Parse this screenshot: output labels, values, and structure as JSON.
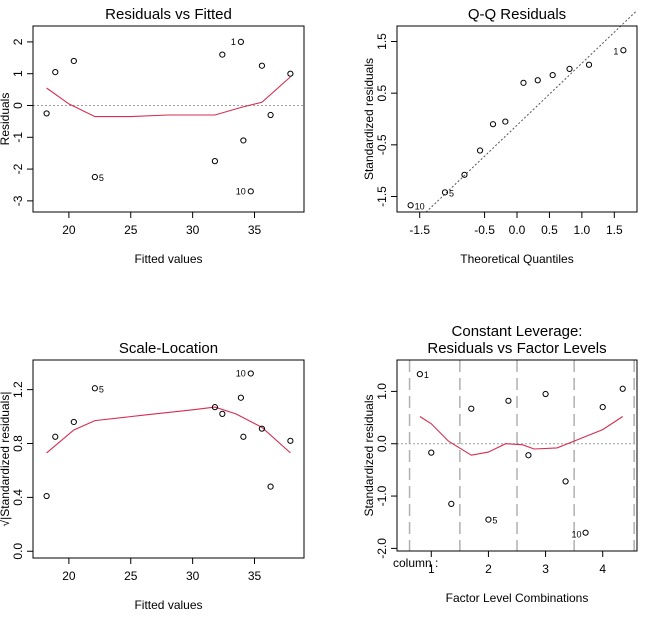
{
  "chart_data": [
    {
      "type": "scatter",
      "id": "p1",
      "title": "Residuals vs Fitted",
      "xlabel": "Fitted values",
      "ylabel": "Residuals",
      "xlim": [
        17.1,
        39.0
      ],
      "ylim": [
        -3.35,
        2.5
      ],
      "xticks": [
        20,
        25,
        30,
        35
      ],
      "yticks": [
        -3,
        -2,
        -1,
        0,
        1,
        2
      ],
      "ref_line": 0,
      "points": [
        {
          "x": 18.2,
          "y": -0.25
        },
        {
          "x": 18.9,
          "y": 1.05
        },
        {
          "x": 20.4,
          "y": 1.4
        },
        {
          "x": 22.1,
          "y": -2.25,
          "label": "5"
        },
        {
          "x": 31.8,
          "y": -1.75
        },
        {
          "x": 32.4,
          "y": 1.6
        },
        {
          "x": 33.9,
          "y": 2.0,
          "label": "1"
        },
        {
          "x": 34.1,
          "y": -1.1
        },
        {
          "x": 34.7,
          "y": -2.7,
          "label": "10"
        },
        {
          "x": 35.6,
          "y": 1.25
        },
        {
          "x": 36.3,
          "y": -0.3
        },
        {
          "x": 37.9,
          "y": 1.0
        }
      ],
      "smooth": [
        {
          "x": 18.2,
          "y": 0.55
        },
        {
          "x": 20.0,
          "y": 0.05
        },
        {
          "x": 22.1,
          "y": -0.35
        },
        {
          "x": 25.0,
          "y": -0.35
        },
        {
          "x": 28.0,
          "y": -0.3
        },
        {
          "x": 31.8,
          "y": -0.3
        },
        {
          "x": 34.0,
          "y": -0.05
        },
        {
          "x": 35.6,
          "y": 0.1
        },
        {
          "x": 37.9,
          "y": 0.9
        }
      ]
    },
    {
      "type": "scatter",
      "id": "p2",
      "title": "Q-Q Residuals",
      "xlabel": "Theoretical Quantiles",
      "ylabel": "Standardized residuals",
      "xlim": [
        -1.85,
        1.85
      ],
      "ylim": [
        -1.8,
        1.8
      ],
      "xticks": [
        -1.5,
        -0.5,
        0.0,
        0.5,
        1.0,
        1.5
      ],
      "yticks": [
        -1.5,
        -0.5,
        0.5,
        1.5
      ],
      "qq_line": {
        "slope": 1.2,
        "intercept": -0.12
      },
      "points": [
        {
          "x": -1.64,
          "y": -1.67,
          "label": "10"
        },
        {
          "x": -1.11,
          "y": -1.42,
          "label": "5"
        },
        {
          "x": -0.81,
          "y": -1.08
        },
        {
          "x": -0.57,
          "y": -0.61
        },
        {
          "x": -0.37,
          "y": -0.1
        },
        {
          "x": -0.18,
          "y": -0.05
        },
        {
          "x": 0.1,
          "y": 0.7
        },
        {
          "x": 0.32,
          "y": 0.75
        },
        {
          "x": 0.55,
          "y": 0.85
        },
        {
          "x": 0.81,
          "y": 0.97
        },
        {
          "x": 1.11,
          "y": 1.05
        },
        {
          "x": 1.64,
          "y": 1.33,
          "label": "1"
        }
      ]
    },
    {
      "type": "scatter",
      "id": "p3",
      "title": "Scale-Location",
      "xlabel": "Fitted values",
      "ylabel": "√|Standardized residuals|",
      "xlim": [
        17.1,
        39.0
      ],
      "ylim": [
        -0.05,
        1.42
      ],
      "xticks": [
        20,
        25,
        30,
        35
      ],
      "yticks": [
        0.0,
        0.4,
        0.8,
        1.2
      ],
      "points": [
        {
          "x": 18.2,
          "y": 0.41
        },
        {
          "x": 18.9,
          "y": 0.85
        },
        {
          "x": 20.4,
          "y": 0.96
        },
        {
          "x": 22.1,
          "y": 1.21,
          "label": "5"
        },
        {
          "x": 31.8,
          "y": 1.07
        },
        {
          "x": 32.4,
          "y": 1.02
        },
        {
          "x": 33.9,
          "y": 1.14
        },
        {
          "x": 34.1,
          "y": 0.85
        },
        {
          "x": 34.7,
          "y": 1.32,
          "label": "10"
        },
        {
          "x": 35.6,
          "y": 0.91
        },
        {
          "x": 36.3,
          "y": 0.48
        },
        {
          "x": 37.9,
          "y": 0.82
        }
      ],
      "smooth": [
        {
          "x": 18.2,
          "y": 0.73
        },
        {
          "x": 20.4,
          "y": 0.9
        },
        {
          "x": 22.1,
          "y": 0.97
        },
        {
          "x": 26.0,
          "y": 1.01
        },
        {
          "x": 30.0,
          "y": 1.05
        },
        {
          "x": 31.8,
          "y": 1.07
        },
        {
          "x": 33.5,
          "y": 1.02
        },
        {
          "x": 35.6,
          "y": 0.92
        },
        {
          "x": 37.9,
          "y": 0.73
        }
      ]
    },
    {
      "type": "scatter",
      "id": "p4",
      "title": "Constant Leverage:",
      "title2": "Residuals vs Factor Levels",
      "xlabel": "Factor Level Combinations",
      "ylabel": "Standardized residuals",
      "factor_label": "column :",
      "xlim": [
        0.4,
        4.6
      ],
      "ylim": [
        -2.05,
        1.6
      ],
      "xticks": [
        1,
        2,
        3,
        4
      ],
      "yticks": [
        -2.0,
        -1.0,
        0.0,
        1.0
      ],
      "ref_line": 0,
      "separators": [
        0.62,
        1.5,
        2.5,
        3.5,
        4.55
      ],
      "points": [
        {
          "x": 0.8,
          "y": 1.33,
          "label": "1"
        },
        {
          "x": 1.0,
          "y": -0.17
        },
        {
          "x": 1.35,
          "y": -1.15
        },
        {
          "x": 1.7,
          "y": 0.67
        },
        {
          "x": 2.0,
          "y": -1.45,
          "label": "5"
        },
        {
          "x": 2.35,
          "y": 0.82
        },
        {
          "x": 2.7,
          "y": -0.22
        },
        {
          "x": 3.0,
          "y": 0.95
        },
        {
          "x": 3.35,
          "y": -0.72
        },
        {
          "x": 3.7,
          "y": -1.7,
          "label": "10"
        },
        {
          "x": 4.0,
          "y": 0.7
        },
        {
          "x": 4.35,
          "y": 1.05
        }
      ],
      "smooth": [
        {
          "x": 0.8,
          "y": 0.52
        },
        {
          "x": 1.0,
          "y": 0.38
        },
        {
          "x": 1.3,
          "y": 0.05
        },
        {
          "x": 1.7,
          "y": -0.22
        },
        {
          "x": 2.0,
          "y": -0.16
        },
        {
          "x": 2.3,
          "y": 0.0
        },
        {
          "x": 2.6,
          "y": -0.02
        },
        {
          "x": 2.8,
          "y": -0.1
        },
        {
          "x": 3.2,
          "y": -0.08
        },
        {
          "x": 3.5,
          "y": 0.05
        },
        {
          "x": 4.0,
          "y": 0.27
        },
        {
          "x": 4.35,
          "y": 0.52
        }
      ]
    }
  ]
}
